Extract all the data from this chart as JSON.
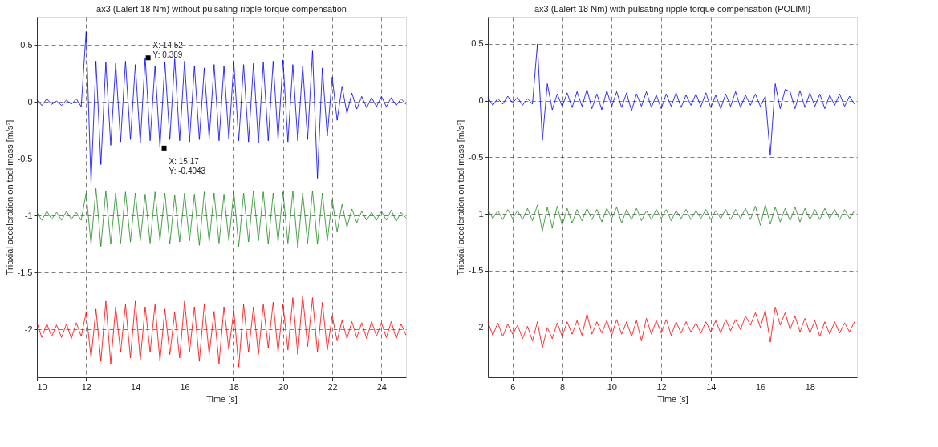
{
  "chart_data": [
    {
      "type": "line",
      "title": "ax3 (Lalert 18 Nm) without pulsating ripple torque compensation",
      "xlabel": "Time [s]",
      "ylabel": "Triaxial acceleration on tool mass [m/s²]",
      "grid": true,
      "line_style": "solid",
      "marker": "none",
      "xlim": [
        10,
        25
      ],
      "ylim": [
        -2.42,
        0.75
      ],
      "xticks": [
        10,
        12,
        14,
        16,
        18,
        20,
        22,
        24
      ],
      "yticks": [
        -2,
        -1.5,
        -1,
        -0.5,
        0,
        0.5
      ],
      "x": [
        10,
        10.2,
        10.4,
        10.6,
        10.8,
        11,
        11.2,
        11.4,
        11.6,
        11.8,
        12,
        12.2,
        12.4,
        12.6,
        12.8,
        13,
        13.2,
        13.4,
        13.6,
        13.8,
        14,
        14.2,
        14.4,
        14.6,
        14.8,
        15,
        15.2,
        15.4,
        15.6,
        15.8,
        16,
        16.2,
        16.4,
        16.6,
        16.8,
        17,
        17.2,
        17.4,
        17.6,
        17.8,
        18,
        18.2,
        18.4,
        18.6,
        18.8,
        19,
        19.2,
        19.4,
        19.6,
        19.8,
        20,
        20.2,
        20.4,
        20.6,
        20.8,
        21,
        21.2,
        21.4,
        21.6,
        21.8,
        22,
        22.2,
        22.4,
        22.6,
        22.8,
        23,
        23.2,
        23.4,
        23.6,
        23.8,
        24,
        24.2,
        24.4,
        24.6,
        24.8,
        25
      ],
      "series": [
        {
          "color": "#0000ff",
          "values": [
            0.02,
            -0.03,
            0.03,
            -0.02,
            0.01,
            -0.03,
            0.02,
            -0.02,
            0.03,
            -0.04,
            0.62,
            -0.72,
            0.36,
            -0.55,
            0.35,
            -0.38,
            0.34,
            -0.35,
            0.36,
            -0.33,
            0.33,
            -0.36,
            0.39,
            -0.34,
            0.32,
            -0.4,
            0.35,
            -0.33,
            0.38,
            -0.34,
            0.36,
            -0.35,
            0.32,
            -0.33,
            0.3,
            -0.32,
            0.33,
            -0.34,
            0.32,
            -0.33,
            0.35,
            -0.34,
            0.33,
            -0.35,
            0.34,
            -0.36,
            0.35,
            -0.34,
            0.36,
            -0.33,
            0.37,
            -0.35,
            0.33,
            -0.34,
            0.32,
            -0.33,
            0.45,
            -0.67,
            0.3,
            -0.3,
            0.22,
            -0.16,
            0.14,
            -0.1,
            0.08,
            -0.06,
            0.05,
            -0.05,
            0.04,
            -0.04,
            0.05,
            -0.04,
            0.04,
            -0.03,
            0.03,
            -0.02
          ]
        },
        {
          "color": "#1f8a1f",
          "values": [
            -0.97,
            -1.04,
            -0.96,
            -1.03,
            -0.97,
            -1.04,
            -0.96,
            -1.03,
            -0.97,
            -1.04,
            -0.8,
            -1.25,
            -0.76,
            -1.27,
            -0.78,
            -1.25,
            -0.8,
            -1.24,
            -0.79,
            -1.23,
            -0.8,
            -1.22,
            -0.81,
            -1.24,
            -0.79,
            -1.22,
            -0.8,
            -1.25,
            -0.82,
            -1.23,
            -0.8,
            -1.22,
            -0.81,
            -1.26,
            -0.79,
            -1.23,
            -0.8,
            -1.24,
            -0.81,
            -1.22,
            -0.79,
            -1.27,
            -0.8,
            -1.23,
            -0.78,
            -1.22,
            -0.79,
            -1.25,
            -0.8,
            -1.23,
            -0.79,
            -1.24,
            -0.78,
            -1.28,
            -0.8,
            -1.24,
            -0.78,
            -1.25,
            -0.8,
            -1.22,
            -0.86,
            -1.14,
            -0.9,
            -1.1,
            -0.94,
            -1.06,
            -0.96,
            -1.04,
            -0.97,
            -1.04,
            -0.96,
            -1.04,
            -0.95,
            -1.05,
            -0.97,
            -1.02
          ]
        },
        {
          "color": "#ff0000",
          "values": [
            -1.94,
            -2.07,
            -1.95,
            -2.06,
            -1.96,
            -2.07,
            -1.95,
            -2.08,
            -1.94,
            -2.06,
            -1.85,
            -2.25,
            -1.82,
            -2.28,
            -1.75,
            -2.3,
            -1.8,
            -2.2,
            -1.78,
            -2.25,
            -1.75,
            -2.27,
            -1.8,
            -2.2,
            -1.78,
            -2.28,
            -1.82,
            -2.22,
            -1.85,
            -2.25,
            -1.75,
            -2.2,
            -1.8,
            -2.28,
            -1.78,
            -2.22,
            -1.84,
            -2.3,
            -1.8,
            -2.18,
            -1.83,
            -2.33,
            -1.78,
            -2.2,
            -1.8,
            -2.22,
            -1.78,
            -2.16,
            -1.76,
            -2.2,
            -1.78,
            -2.18,
            -1.72,
            -2.22,
            -1.7,
            -2.15,
            -1.72,
            -2.2,
            -1.76,
            -2.18,
            -1.88,
            -2.1,
            -1.92,
            -2.08,
            -1.93,
            -2.07,
            -1.94,
            -2.08,
            -1.93,
            -2.06,
            -1.94,
            -2.07,
            -1.93,
            -2.08,
            -1.95,
            -2.05
          ]
        }
      ],
      "annotations": [
        {
          "text": "X: 14.52\nY: 0.389",
          "x": 14.52,
          "y": 0.389
        },
        {
          "text": "X: 15.17\nY: -0.4043",
          "x": 15.17,
          "y": -0.4043
        }
      ]
    },
    {
      "type": "line",
      "title": "ax3 (Lalert 18 Nm) with pulsating ripple torque compensation (POLIMI)",
      "xlabel": "Time [s]",
      "ylabel": "Triaxial acceleration on tool mass [m/s²]",
      "grid": true,
      "line_style": "solid",
      "marker": "none",
      "xlim": [
        5,
        19.9
      ],
      "ylim": [
        -2.44,
        0.74
      ],
      "xticks": [
        6,
        8,
        10,
        12,
        14,
        16,
        18
      ],
      "yticks": [
        -2,
        -1.5,
        -1,
        -0.5,
        0,
        0.5
      ],
      "x": [
        5,
        5.2,
        5.4,
        5.6,
        5.8,
        6,
        6.2,
        6.4,
        6.6,
        6.8,
        7,
        7.2,
        7.4,
        7.6,
        7.8,
        8,
        8.2,
        8.4,
        8.6,
        8.8,
        9,
        9.2,
        9.4,
        9.6,
        9.8,
        10,
        10.2,
        10.4,
        10.6,
        10.8,
        11,
        11.2,
        11.4,
        11.6,
        11.8,
        12,
        12.2,
        12.4,
        12.6,
        12.8,
        13,
        13.2,
        13.4,
        13.6,
        13.8,
        14,
        14.2,
        14.4,
        14.6,
        14.8,
        15,
        15.2,
        15.4,
        15.6,
        15.8,
        16,
        16.2,
        16.4,
        16.6,
        16.8,
        17,
        17.2,
        17.4,
        17.6,
        17.8,
        18,
        18.2,
        18.4,
        18.6,
        18.8,
        19,
        19.2,
        19.4,
        19.6,
        19.8
      ],
      "series": [
        {
          "color": "#0000ff",
          "values": [
            0.03,
            -0.04,
            0.02,
            -0.03,
            0.04,
            -0.02,
            0.03,
            -0.04,
            0.02,
            -0.03,
            0.5,
            -0.35,
            0.15,
            -0.08,
            0.06,
            -0.05,
            0.07,
            -0.06,
            0.08,
            -0.05,
            0.1,
            -0.07,
            0.06,
            -0.08,
            0.09,
            -0.05,
            0.08,
            -0.06,
            0.07,
            -0.09,
            0.06,
            -0.05,
            0.08,
            -0.06,
            0.05,
            -0.07,
            0.06,
            -0.05,
            0.07,
            -0.06,
            0.05,
            -0.04,
            0.06,
            -0.05,
            0.07,
            -0.06,
            0.05,
            -0.07,
            0.06,
            -0.05,
            0.08,
            -0.06,
            0.05,
            -0.04,
            0.06,
            -0.05,
            0.04,
            -0.48,
            0.15,
            -0.07,
            0.1,
            0.08,
            -0.07,
            0.09,
            -0.06,
            0.07,
            -0.05,
            0.06,
            -0.07,
            0.05,
            -0.04,
            0.06,
            -0.05,
            0.04,
            -0.03
          ]
        },
        {
          "color": "#1f8a1f",
          "values": [
            -0.96,
            -1.04,
            -0.97,
            -1.05,
            -0.96,
            -1.04,
            -0.97,
            -1.05,
            -0.95,
            -1.06,
            -0.92,
            -1.15,
            -0.94,
            -1.12,
            -0.93,
            -1.1,
            -0.95,
            -1.08,
            -0.96,
            -1.06,
            -0.95,
            -1.05,
            -0.96,
            -1.07,
            -0.95,
            -1.04,
            -0.94,
            -1.08,
            -0.96,
            -1.05,
            -0.95,
            -1.06,
            -0.97,
            -1.05,
            -0.96,
            -1.04,
            -0.96,
            -1.06,
            -0.97,
            -1.04,
            -0.96,
            -1.05,
            -0.97,
            -1.04,
            -0.96,
            -1.05,
            -0.97,
            -1.04,
            -0.96,
            -1.05,
            -0.96,
            -1.04,
            -0.95,
            -1.05,
            -0.93,
            -1.1,
            -0.92,
            -1.09,
            -0.94,
            -1.07,
            -0.95,
            -1.06,
            -0.94,
            -1.07,
            -0.95,
            -1.05,
            -0.96,
            -1.05,
            -0.95,
            -1.04,
            -0.96,
            -1.05,
            -0.96,
            -1.04,
            -0.97
          ]
        },
        {
          "color": "#ff0000",
          "values": [
            -1.95,
            -2.07,
            -1.96,
            -2.08,
            -1.97,
            -2.06,
            -1.98,
            -2.1,
            -1.99,
            -2.12,
            -1.95,
            -2.18,
            -2.0,
            -2.1,
            -1.96,
            -2.08,
            -1.95,
            -2.06,
            -1.94,
            -2.07,
            -1.88,
            -2.06,
            -1.95,
            -2.05,
            -1.94,
            -2.07,
            -1.93,
            -2.06,
            -1.95,
            -2.08,
            -1.94,
            -2.12,
            -1.92,
            -2.06,
            -1.94,
            -2.05,
            -1.93,
            -2.07,
            -1.95,
            -2.05,
            -1.95,
            -2.04,
            -1.96,
            -2.05,
            -1.95,
            -2.04,
            -1.94,
            -2.05,
            -1.93,
            -2.03,
            -1.93,
            -2.02,
            -1.9,
            -1.98,
            -1.87,
            -2.0,
            -1.85,
            -2.13,
            -1.82,
            -1.98,
            -1.87,
            -2.02,
            -1.9,
            -2.04,
            -1.92,
            -2.05,
            -1.94,
            -2.08,
            -1.95,
            -2.06,
            -1.95,
            -2.05,
            -1.96,
            -2.04,
            -1.95
          ]
        }
      ]
    }
  ]
}
